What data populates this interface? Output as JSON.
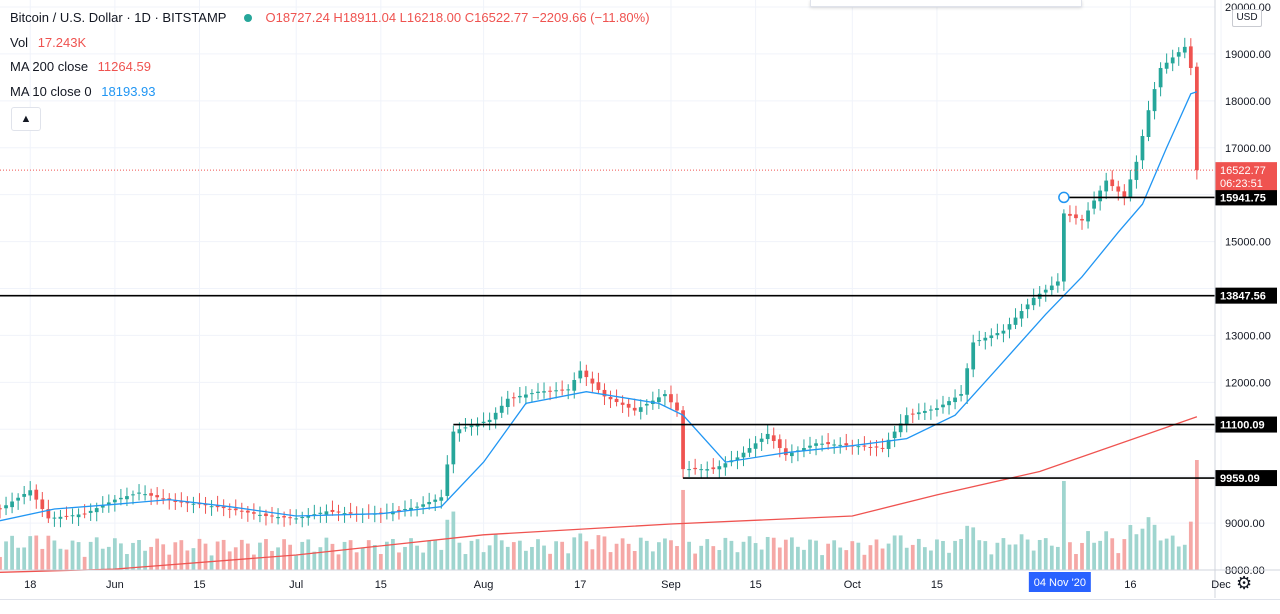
{
  "header": {
    "symbol": "Bitcoin / U.S. Dollar · 1D · BITSTAMP",
    "ohlc": "O18727.24 H18911.04 L16218.00 C16522.77 −2209.66 (−11.80%)"
  },
  "indicators": {
    "vol_label": "Vol",
    "vol_value": "17.243K",
    "ma200_label": "MA 200 close",
    "ma200_value": "11264.59",
    "ma10_label": "MA 10 close 0",
    "ma10_value": "18193.93"
  },
  "ui": {
    "currency": "USD",
    "collapse_icon": "chevron-up-icon",
    "settings_icon": "gear-icon"
  },
  "colors": {
    "up": "#26a69a",
    "down": "#ef5350",
    "ma10": "#2196f3",
    "ma200": "#ef5350",
    "vol_up": "#9fd5cf",
    "vol_down": "#f5a8a6",
    "hline": "#000000"
  },
  "chart_data": {
    "type": "candlestick",
    "title": "Bitcoin / U.S. Dollar · 1D · BITSTAMP",
    "x_range": [
      "2020-05-13",
      "2020-11-30"
    ],
    "ylim": [
      8000,
      20000
    ],
    "y_ticks": [
      8000,
      9000,
      10000,
      11000,
      12000,
      13000,
      14000,
      15000,
      16000,
      17000,
      18000,
      19000,
      20000
    ],
    "x_ticks": [
      {
        "date": "2020-05-18",
        "label": "18"
      },
      {
        "date": "2020-06-01",
        "label": "Jun"
      },
      {
        "date": "2020-06-15",
        "label": "15"
      },
      {
        "date": "2020-07-01",
        "label": "Jul"
      },
      {
        "date": "2020-07-15",
        "label": "15"
      },
      {
        "date": "2020-08-01",
        "label": "Aug"
      },
      {
        "date": "2020-08-17",
        "label": "17"
      },
      {
        "date": "2020-09-01",
        "label": "Sep"
      },
      {
        "date": "2020-09-15",
        "label": "15"
      },
      {
        "date": "2020-10-01",
        "label": "Oct"
      },
      {
        "date": "2020-10-15",
        "label": "15"
      },
      {
        "date": "2020-11-16",
        "label": "16"
      },
      {
        "date": "2020-12-01",
        "label": "Dec"
      }
    ],
    "crosshair_date_label": "04 Nov '20",
    "last_price": {
      "value": 16522.77,
      "label": "16522.77",
      "countdown": "06:23:51"
    },
    "horizontal_lines": [
      {
        "value": 15941.75,
        "label": "15941.75",
        "start": "2020-11-05"
      },
      {
        "value": 13847.56,
        "label": "13847.56",
        "start": "2020-05-13"
      },
      {
        "value": 11100.09,
        "label": "11100.09",
        "start": "2020-07-27"
      },
      {
        "value": 9959.09,
        "label": "9959.09",
        "start": "2020-09-03"
      }
    ],
    "close_path": [
      [
        "2020-05-13",
        9300
      ],
      [
        "2020-05-18",
        9700
      ],
      [
        "2020-05-21",
        9100
      ],
      [
        "2020-05-27",
        9200
      ],
      [
        "2020-06-01",
        9500
      ],
      [
        "2020-06-05",
        9650
      ],
      [
        "2020-06-11",
        9450
      ],
      [
        "2020-06-15",
        9400
      ],
      [
        "2020-06-20",
        9300
      ],
      [
        "2020-06-26",
        9150
      ],
      [
        "2020-07-01",
        9100
      ],
      [
        "2020-07-06",
        9250
      ],
      [
        "2020-07-10",
        9200
      ],
      [
        "2020-07-15",
        9200
      ],
      [
        "2020-07-21",
        9350
      ],
      [
        "2020-07-25",
        9550
      ],
      [
        "2020-07-27",
        10950
      ],
      [
        "2020-07-28",
        11000
      ],
      [
        "2020-08-02",
        11200
      ],
      [
        "2020-08-05",
        11650
      ],
      [
        "2020-08-10",
        11800
      ],
      [
        "2020-08-15",
        11850
      ],
      [
        "2020-08-17",
        12250
      ],
      [
        "2020-08-21",
        11700
      ],
      [
        "2020-08-26",
        11400
      ],
      [
        "2020-08-31",
        11750
      ],
      [
        "2020-09-02",
        11400
      ],
      [
        "2020-09-03",
        10150
      ],
      [
        "2020-09-08",
        10150
      ],
      [
        "2020-09-12",
        10400
      ],
      [
        "2020-09-17",
        10900
      ],
      [
        "2020-09-20",
        10450
      ],
      [
        "2020-09-25",
        10700
      ],
      [
        "2020-10-01",
        10650
      ],
      [
        "2020-10-06",
        10600
      ],
      [
        "2020-10-10",
        11300
      ],
      [
        "2020-10-15",
        11450
      ],
      [
        "2020-10-19",
        11750
      ],
      [
        "2020-10-21",
        12850
      ],
      [
        "2020-10-26",
        13100
      ],
      [
        "2020-10-31",
        13800
      ],
      [
        "2020-11-04",
        14150
      ],
      [
        "2020-11-05",
        15600
      ],
      [
        "2020-11-08",
        15450
      ],
      [
        "2020-11-12",
        16300
      ],
      [
        "2020-11-15",
        15950
      ],
      [
        "2020-11-17",
        16700
      ],
      [
        "2020-11-19",
        17800
      ],
      [
        "2020-11-21",
        18700
      ],
      [
        "2020-11-25",
        19150
      ],
      [
        "2020-11-26",
        18700
      ],
      [
        "2020-11-27",
        16522.77
      ]
    ],
    "ma10_path": [
      [
        "2020-05-13",
        9050
      ],
      [
        "2020-05-22",
        9300
      ],
      [
        "2020-06-01",
        9400
      ],
      [
        "2020-06-10",
        9500
      ],
      [
        "2020-06-20",
        9350
      ],
      [
        "2020-07-01",
        9150
      ],
      [
        "2020-07-15",
        9200
      ],
      [
        "2020-07-25",
        9350
      ],
      [
        "2020-08-01",
        10300
      ],
      [
        "2020-08-08",
        11550
      ],
      [
        "2020-08-18",
        11800
      ],
      [
        "2020-08-30",
        11550
      ],
      [
        "2020-09-03",
        11300
      ],
      [
        "2020-09-10",
        10300
      ],
      [
        "2020-09-20",
        10500
      ],
      [
        "2020-10-01",
        10650
      ],
      [
        "2020-10-10",
        10800
      ],
      [
        "2020-10-18",
        11300
      ],
      [
        "2020-10-25",
        12300
      ],
      [
        "2020-11-02",
        13450
      ],
      [
        "2020-11-08",
        14250
      ],
      [
        "2020-11-14",
        15200
      ],
      [
        "2020-11-18",
        15800
      ],
      [
        "2020-11-22",
        17000
      ],
      [
        "2020-11-26",
        18150
      ],
      [
        "2020-11-27",
        18193.93
      ]
    ],
    "ma200_path": [
      [
        "2020-05-13",
        7950
      ],
      [
        "2020-06-01",
        8020
      ],
      [
        "2020-07-01",
        8320
      ],
      [
        "2020-08-01",
        8750
      ],
      [
        "2020-09-01",
        8980
      ],
      [
        "2020-10-01",
        9150
      ],
      [
        "2020-10-15",
        9600
      ],
      [
        "2020-11-01",
        10100
      ],
      [
        "2020-11-27",
        11264.59
      ]
    ],
    "volume_max": 17500,
    "volume_note": "Vol 17.243K (last bar)"
  }
}
